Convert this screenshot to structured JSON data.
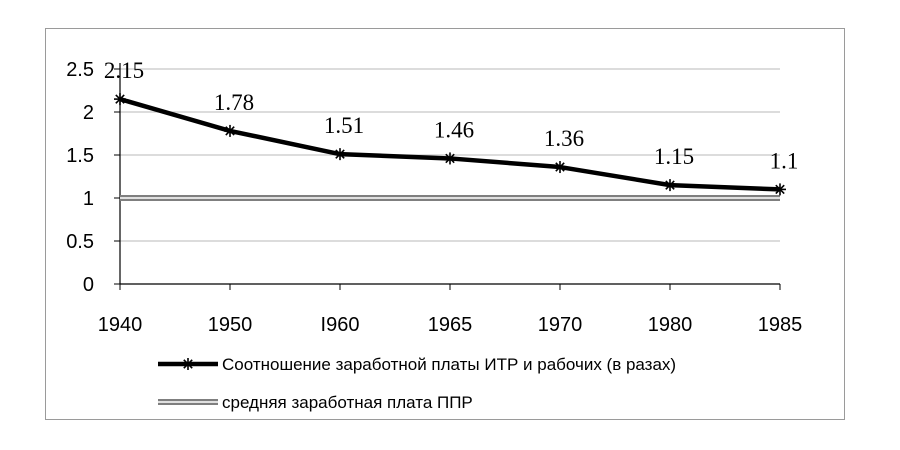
{
  "chart_data": {
    "type": "line",
    "categories": [
      "1940",
      "1950",
      "I960",
      "1965",
      "1970",
      "1980",
      "1985"
    ],
    "yticks": [
      "0",
      "0.5",
      "1",
      "1.5",
      "2",
      "2.5"
    ],
    "ylim": [
      0,
      2.5
    ],
    "grid": true,
    "legend_position": "bottom",
    "series": [
      {
        "name": "Соотношение заработной платы ИТР и рабочих (в разах)",
        "values": [
          2.15,
          1.78,
          1.51,
          1.46,
          1.36,
          1.15,
          1.1
        ],
        "labels": [
          "2.15",
          "1.78",
          "1.51",
          "1.46",
          "1.36",
          "1.15",
          "1.1"
        ],
        "color": "#000000",
        "marker": "asterisk"
      },
      {
        "name": "средняя заработная плата ППР",
        "values": [
          1,
          1,
          1,
          1,
          1,
          1,
          1
        ],
        "color": "#7f7f7f"
      }
    ]
  }
}
